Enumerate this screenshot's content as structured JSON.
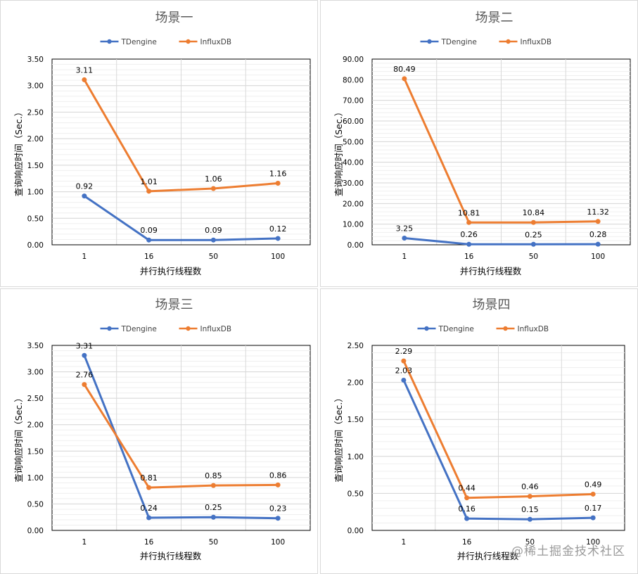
{
  "colors": {
    "tdengine": "#4472c4",
    "influxdb": "#ed7d31",
    "grid": "#e3e3e3",
    "axis": "#000000",
    "text": "#404040",
    "title": "#595959"
  },
  "watermark": "@稀土掘金技术社区",
  "chart_data": [
    {
      "type": "line",
      "title": "场景一",
      "xlabel": "并行执行线程数",
      "ylabel": "查询响应时间（Sec.）",
      "categories": [
        "1",
        "16",
        "50",
        "100"
      ],
      "yticks": [
        "0.00",
        "0.50",
        "1.00",
        "1.50",
        "2.00",
        "2.50",
        "3.00",
        "3.50"
      ],
      "ylim": [
        0,
        3.5
      ],
      "legend_position": "top",
      "series": [
        {
          "name": "TDengine",
          "values": [
            0.92,
            0.09,
            0.09,
            0.12
          ],
          "labels": [
            "0.92",
            "0.09",
            "0.09",
            "0.12"
          ]
        },
        {
          "name": "InfluxDB",
          "values": [
            3.11,
            1.01,
            1.06,
            1.16
          ],
          "labels": [
            "3.11",
            "1.01",
            "1.06",
            "1.16"
          ]
        }
      ]
    },
    {
      "type": "line",
      "title": "场景二",
      "xlabel": "并行执行线程数",
      "ylabel": "查询响应时间（Sec.）",
      "categories": [
        "1",
        "16",
        "50",
        "100"
      ],
      "yticks": [
        "0.00",
        "10.00",
        "20.00",
        "30.00",
        "40.00",
        "50.00",
        "60.00",
        "70.00",
        "80.00",
        "90.00"
      ],
      "ylim": [
        0,
        90
      ],
      "legend_position": "top",
      "series": [
        {
          "name": "TDengine",
          "values": [
            3.25,
            0.26,
            0.25,
            0.28
          ],
          "labels": [
            "3.25",
            "0.26",
            "0.25",
            "0.28"
          ]
        },
        {
          "name": "InfluxDB",
          "values": [
            80.49,
            10.81,
            10.84,
            11.32
          ],
          "labels": [
            "80.49",
            "10.81",
            "10.84",
            "11.32"
          ]
        }
      ]
    },
    {
      "type": "line",
      "title": "场景三",
      "xlabel": "并行执行线程数",
      "ylabel": "查询响应时间（Sec.）",
      "categories": [
        "1",
        "16",
        "50",
        "100"
      ],
      "yticks": [
        "0.00",
        "0.50",
        "1.00",
        "1.50",
        "2.00",
        "2.50",
        "3.00",
        "3.50"
      ],
      "ylim": [
        0,
        3.5
      ],
      "legend_position": "top",
      "series": [
        {
          "name": "TDengine",
          "values": [
            3.31,
            0.24,
            0.25,
            0.23
          ],
          "labels": [
            "3.31",
            "0.24",
            "0.25",
            "0.23"
          ]
        },
        {
          "name": "InfluxDB",
          "values": [
            2.76,
            0.81,
            0.85,
            0.86
          ],
          "labels": [
            "2.76",
            "0.81",
            "0.85",
            "0.86"
          ]
        }
      ]
    },
    {
      "type": "line",
      "title": "场景四",
      "xlabel": "并行执行线程数",
      "ylabel": "查询响应时间（Sec.）",
      "categories": [
        "1",
        "16",
        "50",
        "100"
      ],
      "yticks": [
        "0.00",
        "0.50",
        "1.00",
        "1.50",
        "2.00",
        "2.50"
      ],
      "ylim": [
        0,
        2.5
      ],
      "legend_position": "top",
      "series": [
        {
          "name": "TDengine",
          "values": [
            2.03,
            0.16,
            0.15,
            0.17
          ],
          "labels": [
            "2.03",
            "0.16",
            "0.15",
            "0.17"
          ]
        },
        {
          "name": "InfluxDB",
          "values": [
            2.29,
            0.44,
            0.46,
            0.49
          ],
          "labels": [
            "2.29",
            "0.44",
            "0.46",
            "0.49"
          ]
        }
      ]
    }
  ]
}
